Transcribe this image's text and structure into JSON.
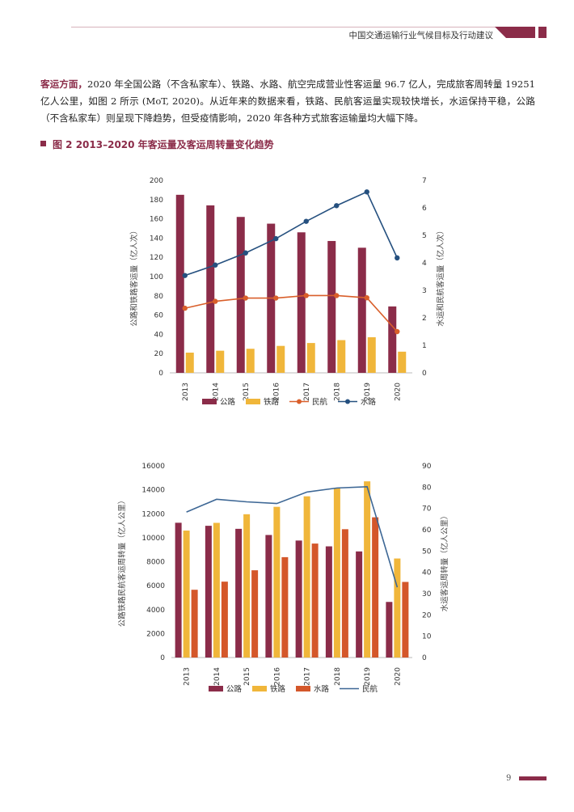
{
  "header": {
    "title": "中国交通运输行业气候目标及行动建议"
  },
  "paragraph": {
    "lead": "客运方面，",
    "body": "2020 年全国公路（不含私家车）、铁路、水路、航空完成营业性客运量 96.7 亿人，完成旅客周转量 19251 亿人公里，如图 2 所示 (MoT, 2020)。从近年来的数据来看，铁路、民航客运量实现较快增长，水运保持平稳，公路（不含私家车）则呈现下降趋势，但受疫情影响，2020 年各种方式旅客运输量均大幅下降。"
  },
  "figure": {
    "title": "图 2  2013–2020 年客运量及客运周转量变化趋势"
  },
  "page_number": "9",
  "colors": {
    "highway": "#8b2c49",
    "railway": "#f0b63a",
    "aviation_line": "#d95f2b",
    "waterway_line": "#25507f",
    "waterway_bar": "#d4572a",
    "aviation_line2": "#3d6795",
    "accent": "#8b2c49"
  },
  "chart_data": [
    {
      "type": "bar",
      "categories": [
        "2013",
        "2014",
        "2015",
        "2016",
        "2017",
        "2018",
        "2019",
        "2020"
      ],
      "ylabel": "公路和铁路客运量（亿人次）",
      "y2label": "水运和民航客运量（亿人次）",
      "ylim": [
        0,
        200
      ],
      "y2lim": [
        0,
        7
      ],
      "yticks": [
        "0",
        "20",
        "40",
        "60",
        "80",
        "100",
        "120",
        "140",
        "160",
        "180",
        "200"
      ],
      "y2ticks": [
        "0",
        "1",
        "2",
        "3",
        "4",
        "5",
        "6",
        "7"
      ],
      "series": [
        {
          "name": "公路",
          "kind": "bar",
          "axis": "left",
          "values": [
            185,
            174,
            162,
            155,
            146,
            137,
            130,
            69
          ]
        },
        {
          "name": "铁路",
          "kind": "bar",
          "axis": "left",
          "values": [
            21,
            23,
            25,
            28,
            31,
            34,
            37,
            22
          ]
        },
        {
          "name": "民航",
          "kind": "line",
          "axis": "right",
          "values": [
            2.35,
            2.6,
            2.72,
            2.72,
            2.81,
            2.81,
            2.73,
            1.5
          ]
        },
        {
          "name": "水路",
          "kind": "line",
          "axis": "right",
          "values": [
            3.54,
            3.92,
            4.36,
            4.88,
            5.51,
            6.08,
            6.58,
            4.18
          ]
        }
      ],
      "legend": "bottom",
      "grid": false
    },
    {
      "type": "bar",
      "categories": [
        "2013",
        "2014",
        "2015",
        "2016",
        "2017",
        "2018",
        "2019",
        "2020"
      ],
      "ylabel": "公路铁路民航客运周转量（亿人公里）",
      "y2label": "水运客运周转量（亿人公里）",
      "ylim": [
        0,
        16000
      ],
      "y2lim": [
        0,
        90
      ],
      "yticks": [
        "0",
        "2000",
        "4000",
        "6000",
        "8000",
        "10000",
        "12000",
        "14000",
        "16000"
      ],
      "y2ticks": [
        "0",
        "10",
        "20",
        "30",
        "40",
        "50",
        "60",
        "70",
        "80",
        "90"
      ],
      "series": [
        {
          "name": "公路",
          "kind": "bar",
          "axis": "left",
          "values": [
            11250,
            10996,
            10743,
            10229,
            9765,
            9280,
            8857,
            4641
          ]
        },
        {
          "name": "铁路",
          "kind": "bar",
          "axis": "left",
          "values": [
            10596,
            11242,
            11961,
            12579,
            13457,
            14147,
            14707,
            8266
          ]
        },
        {
          "name": "水路",
          "kind": "bar",
          "axis": "left",
          "values": [
            5657,
            6334,
            7283,
            8378,
            9513,
            10712,
            11705,
            6311
          ]
        },
        {
          "name": "民航",
          "kind": "line",
          "axis": "right",
          "values": [
            68.3,
            74.3,
            73.1,
            72.3,
            77.7,
            79.6,
            80.2,
            33.0
          ]
        }
      ],
      "legend": "bottom",
      "grid": false
    }
  ]
}
